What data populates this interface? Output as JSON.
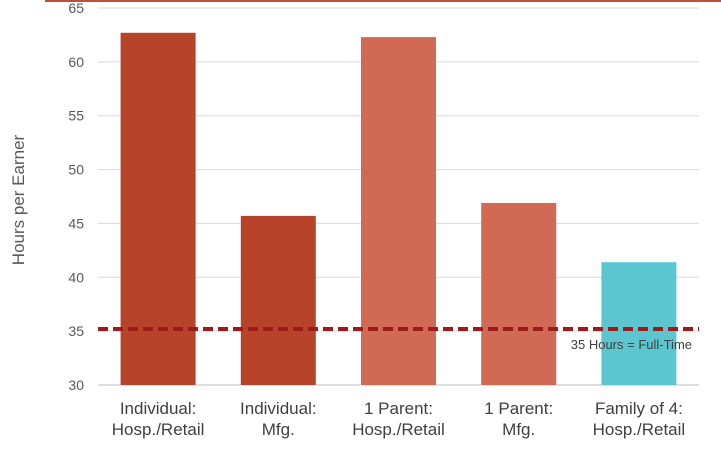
{
  "chart_data": {
    "type": "bar",
    "xlabel": "",
    "ylabel": "Hours per Earner",
    "ylim": [
      30,
      65
    ],
    "yticks": [
      30,
      35,
      40,
      45,
      50,
      55,
      60,
      65
    ],
    "grid": true,
    "categories": [
      [
        "Individual:",
        "Hosp./Retail"
      ],
      [
        "Individual:",
        "Mfg."
      ],
      [
        "1 Parent:",
        "Hosp./Retail"
      ],
      [
        "1 Parent:",
        "Mfg."
      ],
      [
        "Family of 4:",
        "Hosp./Retail"
      ]
    ],
    "values": [
      62.7,
      45.7,
      62.3,
      46.9,
      41.4
    ],
    "bar_colors": [
      "#b8432b",
      "#b8432b",
      "#d06a54",
      "#d06a54",
      "#5bc6d0"
    ],
    "reference_line": {
      "value": 35.2,
      "label": "35 Hours = Full-Time",
      "color": "#9e1b1b"
    },
    "top_border_color": "#c0503a"
  }
}
